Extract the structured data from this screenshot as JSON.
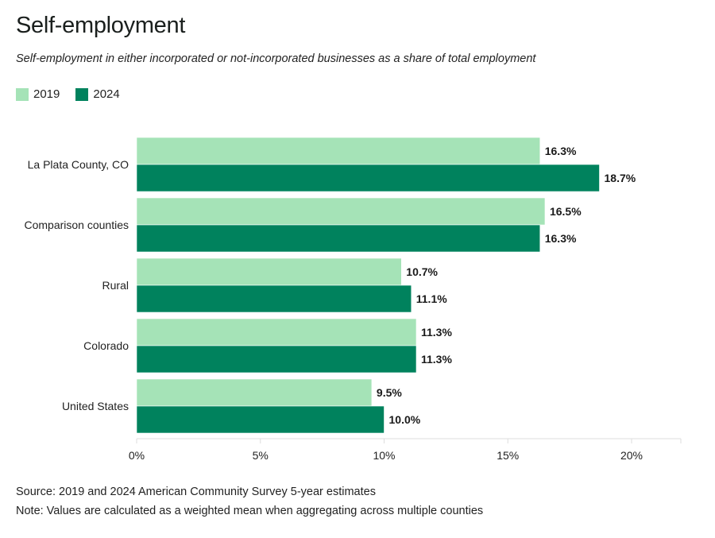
{
  "title": "Self-employment",
  "subtitle": "Self-employment in either incorporated or not-incorporated businesses as a share of total employment",
  "legend": [
    {
      "label": "2019",
      "color": "#a5e3b7"
    },
    {
      "label": "2024",
      "color": "#00825d"
    }
  ],
  "source": "Source: 2019 and 2024 American Community Survey 5-year estimates",
  "note": "Note: Values are calculated as a weighted mean when aggregating across multiple counties",
  "chart_data": {
    "type": "bar",
    "orientation": "horizontal",
    "title": "Self-employment",
    "subtitle": "Self-employment in either incorporated or not-incorporated businesses as a share of total employment",
    "xlabel": "",
    "ylabel": "",
    "categories": [
      "La Plata County, CO",
      "Comparison counties",
      "Rural",
      "Colorado",
      "United States"
    ],
    "series": [
      {
        "name": "2019",
        "color": "#a5e3b7",
        "values": [
          16.3,
          16.5,
          10.7,
          11.3,
          9.5
        ],
        "labels": [
          "16.3%",
          "16.5%",
          "10.7%",
          "11.3%",
          "9.5%"
        ]
      },
      {
        "name": "2024",
        "color": "#00825d",
        "values": [
          18.7,
          16.3,
          11.1,
          11.3,
          10.0
        ],
        "labels": [
          "18.7%",
          "16.3%",
          "11.1%",
          "11.3%",
          "10.0%"
        ]
      }
    ],
    "xlim": [
      0,
      22
    ],
    "xticks": [
      0,
      5,
      10,
      15,
      20
    ],
    "xtick_labels": [
      "0%",
      "5%",
      "10%",
      "15%",
      "20%"
    ],
    "grid": false,
    "legend_position": "top-left",
    "data_labels": true
  }
}
